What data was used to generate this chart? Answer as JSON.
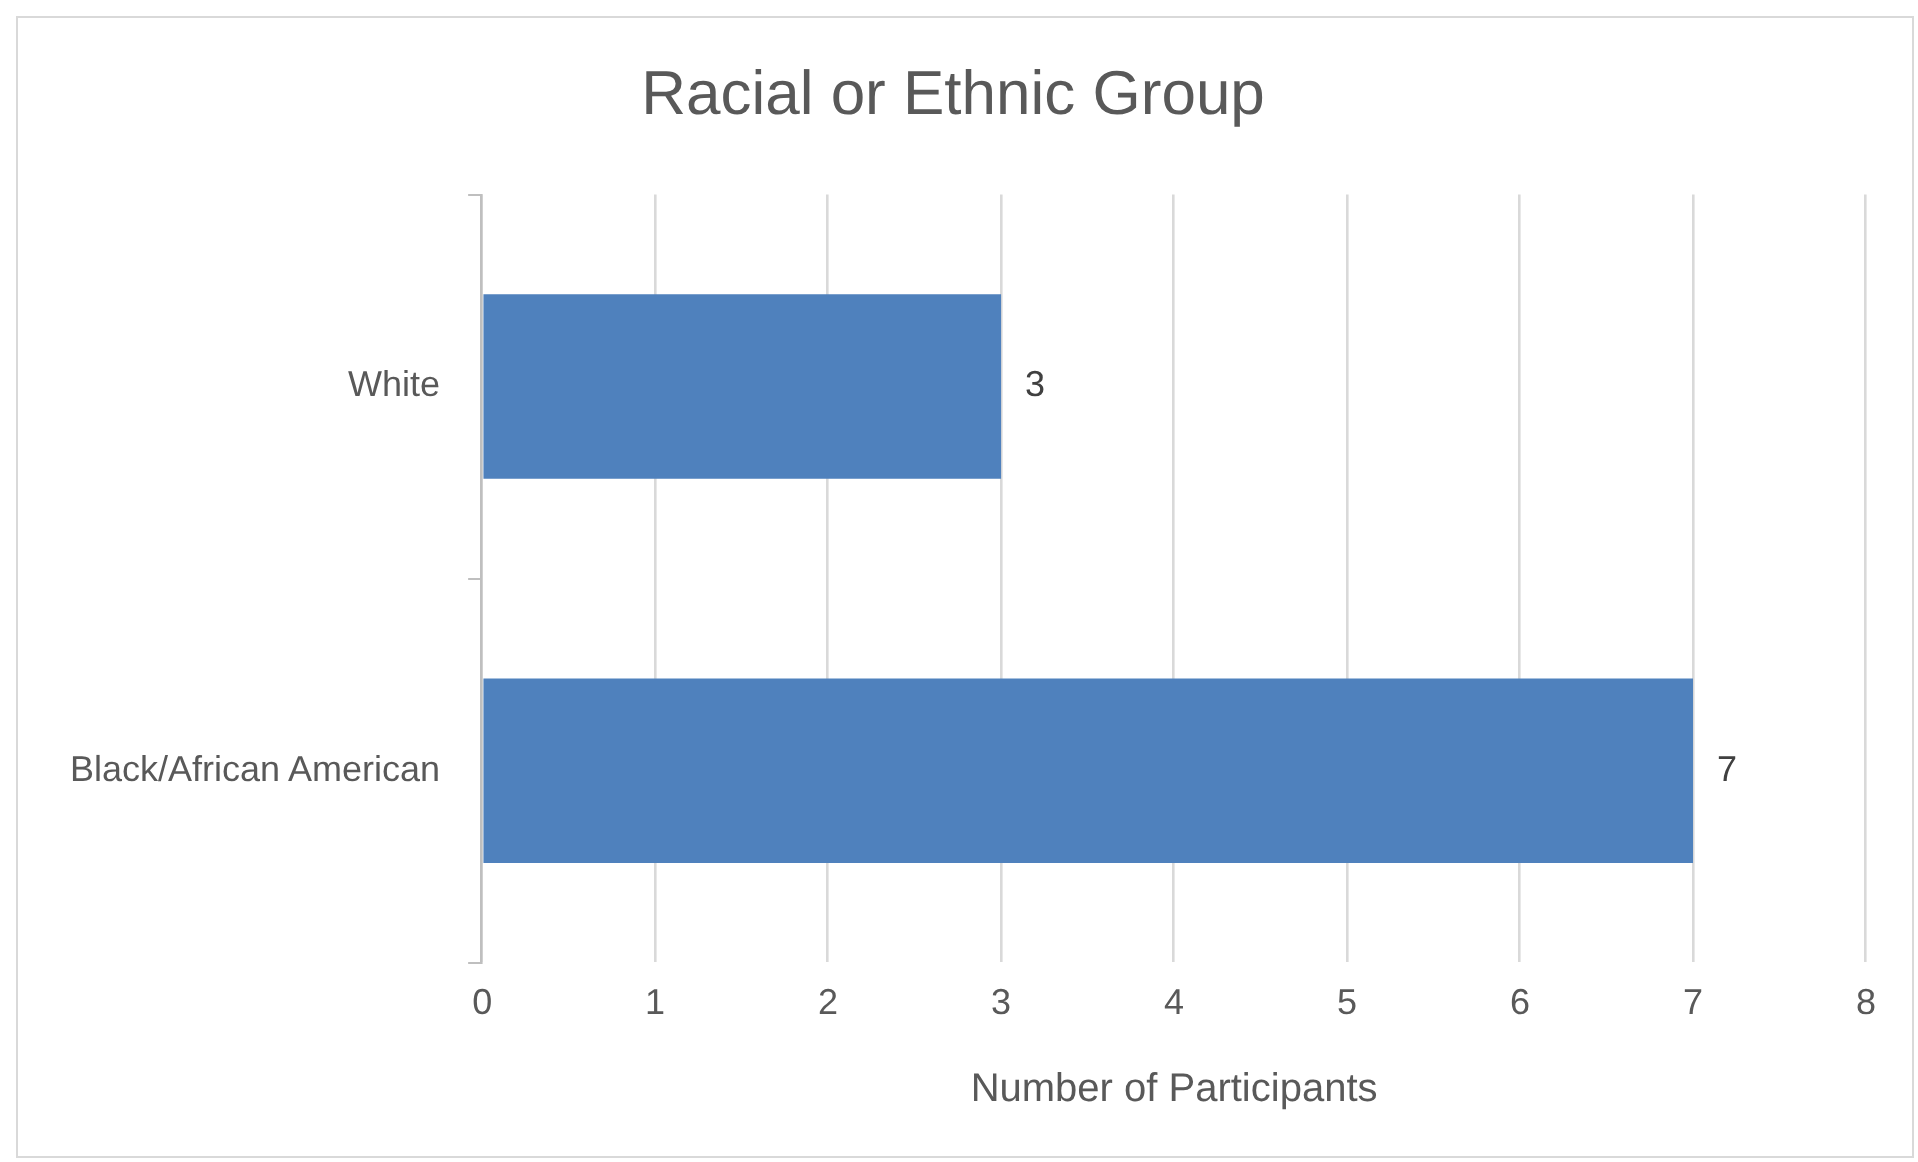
{
  "chart_data": {
    "type": "bar",
    "orientation": "horizontal",
    "title": "Racial or Ethnic Group",
    "xlabel": "Number of Participants",
    "categories": [
      "White",
      "Black/African American"
    ],
    "values": [
      3,
      7
    ],
    "color": "#4f81bd",
    "xlim": [
      0,
      8
    ],
    "xticks": [
      0,
      1,
      2,
      3,
      4,
      5,
      6,
      7,
      8
    ],
    "grid": "x",
    "data_labels": true,
    "legend": false
  }
}
